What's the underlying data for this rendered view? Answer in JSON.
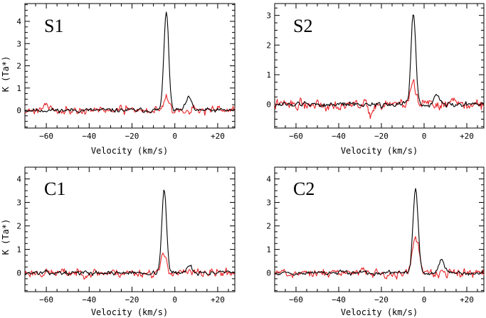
{
  "chart_data": [
    {
      "type": "line",
      "panel_label": "S1",
      "xlabel": "Velocity (km/s)",
      "ylabel": "K (Ta*)",
      "xlim": [
        -70,
        28
      ],
      "ylim": [
        -0.8,
        4.8
      ],
      "x_ticks": [
        -60,
        -40,
        -20,
        0,
        20
      ],
      "x_tick_labels": [
        "−60",
        "−40",
        "−20",
        "0",
        "+20"
      ],
      "y_ticks": [
        0,
        1,
        2,
        3,
        4
      ],
      "y_tick_labels": [
        "0",
        "1",
        "2",
        "3",
        "4"
      ],
      "series": [
        {
          "name": "black",
          "color": "#000000",
          "peak_velocity": -4,
          "peak_value": 4.5,
          "peak_width": 1.1,
          "noise": 0.1,
          "extra_features": [
            {
              "v": 6.5,
              "a": 0.55,
              "w": 1.3
            }
          ],
          "seed": 11
        },
        {
          "name": "red",
          "color": "#e8262a",
          "peak_velocity": -4,
          "peak_value": 0.6,
          "peak_width": 1.3,
          "noise": 0.18,
          "extra_features": [
            {
              "v": -60,
              "a": 0.3,
              "w": 1.5
            }
          ],
          "seed": 21
        }
      ]
    },
    {
      "type": "line",
      "panel_label": "S2",
      "xlabel": "Velocity (km/s)",
      "ylabel": "",
      "xlim": [
        -70,
        28
      ],
      "ylim": [
        -0.8,
        3.4
      ],
      "x_ticks": [
        -60,
        -40,
        -20,
        0,
        20
      ],
      "x_tick_labels": [
        "−60",
        "−40",
        "−20",
        "0",
        "+20"
      ],
      "y_ticks": [
        0,
        1,
        2,
        3
      ],
      "y_tick_labels": [
        "0",
        "1",
        "2",
        "3"
      ],
      "series": [
        {
          "name": "black",
          "color": "#000000",
          "peak_velocity": -5,
          "peak_value": 3.1,
          "peak_width": 1.1,
          "noise": 0.09,
          "extra_features": [
            {
              "v": 6,
              "a": 0.35,
              "w": 1.2
            }
          ],
          "seed": 12
        },
        {
          "name": "red",
          "color": "#e8262a",
          "peak_velocity": -5,
          "peak_value": 0.7,
          "peak_width": 1.3,
          "noise": 0.18,
          "extra_features": [
            {
              "v": -25,
              "a": -0.45,
              "w": 0.8
            }
          ],
          "seed": 22
        }
      ]
    },
    {
      "type": "line",
      "panel_label": "C1",
      "xlabel": "Velocity (km/s)",
      "ylabel": "K (Ta*)",
      "xlim": [
        -70,
        28
      ],
      "ylim": [
        -0.8,
        4.5
      ],
      "x_ticks": [
        -60,
        -40,
        -20,
        0,
        20
      ],
      "x_tick_labels": [
        "−60",
        "−40",
        "−20",
        "0",
        "+20"
      ],
      "y_ticks": [
        0,
        1,
        2,
        3,
        4
      ],
      "y_tick_labels": [
        "0",
        "1",
        "2",
        "3",
        "4"
      ],
      "series": [
        {
          "name": "black",
          "color": "#000000",
          "peak_velocity": -5,
          "peak_value": 3.55,
          "peak_width": 1.1,
          "noise": 0.09,
          "extra_features": [
            {
              "v": 7,
              "a": 0.35,
              "w": 1.2
            }
          ],
          "seed": 13
        },
        {
          "name": "red",
          "color": "#e8262a",
          "peak_velocity": -5,
          "peak_value": 0.75,
          "peak_width": 1.3,
          "noise": 0.19,
          "extra_features": [],
          "seed": 23
        }
      ]
    },
    {
      "type": "line",
      "panel_label": "C2",
      "xlabel": "Velocity (km/s)",
      "ylabel": "",
      "xlim": [
        -70,
        28
      ],
      "ylim": [
        -0.8,
        4.5
      ],
      "x_ticks": [
        -60,
        -40,
        -20,
        0,
        20
      ],
      "x_tick_labels": [
        "−60",
        "−40",
        "−20",
        "0",
        "+20"
      ],
      "y_ticks": [
        0,
        1,
        2,
        3,
        4
      ],
      "y_tick_labels": [
        "0",
        "1",
        "2",
        "3",
        "4"
      ],
      "series": [
        {
          "name": "black",
          "color": "#000000",
          "peak_velocity": -4,
          "peak_value": 3.6,
          "peak_width": 1.2,
          "noise": 0.09,
          "extra_features": [
            {
              "v": 8,
              "a": 0.6,
              "w": 1.2
            }
          ],
          "seed": 14
        },
        {
          "name": "red",
          "color": "#e8262a",
          "peak_velocity": -4,
          "peak_value": 1.4,
          "peak_width": 1.5,
          "noise": 0.19,
          "extra_features": [],
          "seed": 24
        }
      ]
    }
  ]
}
